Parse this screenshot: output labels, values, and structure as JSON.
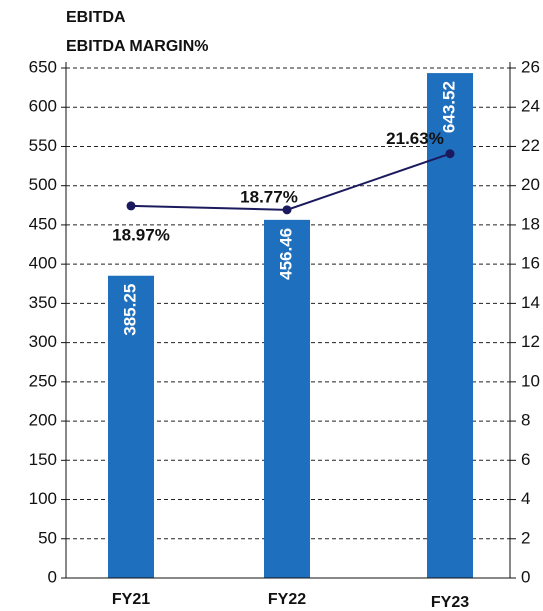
{
  "chart_data": {
    "type": "bar-line",
    "categories": [
      "FY21",
      "FY22",
      "FY23"
    ],
    "series": [
      {
        "name": "EBITDA",
        "type": "bar",
        "color": "#1f6fbf",
        "values": [
          385.25,
          456.46,
          643.52
        ]
      },
      {
        "name": "EBITDA MARGIN%",
        "type": "line",
        "axis": "y2",
        "color": "#1c1a5e",
        "values": [
          18.97,
          18.77,
          21.63
        ],
        "value_labels": [
          "18.97%",
          "18.77%",
          "21.63%"
        ]
      }
    ],
    "ylim": [
      0,
      650
    ],
    "yticks": [
      0,
      50,
      100,
      150,
      200,
      250,
      300,
      350,
      400,
      450,
      500,
      550,
      600,
      650
    ],
    "y2lim": [
      0,
      26
    ],
    "y2ticks": [
      0,
      2,
      4,
      6,
      8,
      10,
      12,
      14,
      16,
      18,
      20,
      22,
      24,
      26
    ],
    "grid": true
  }
}
